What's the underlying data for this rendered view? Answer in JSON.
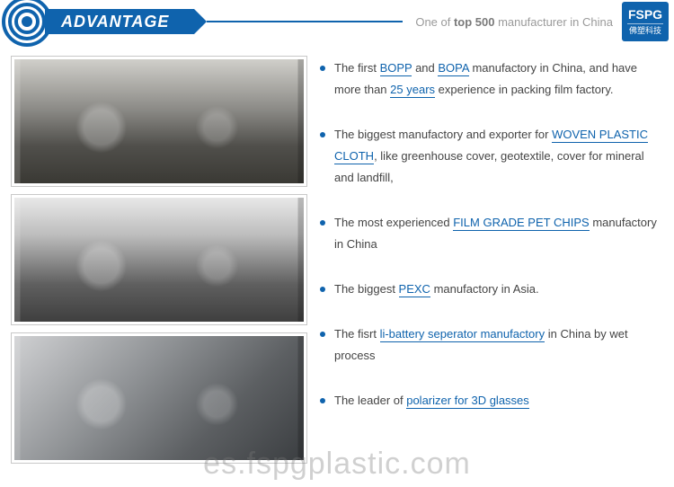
{
  "header": {
    "title": "ADVANTAGE",
    "tagline_prefix": "One of ",
    "tagline_bold": "top 500",
    "tagline_suffix": " manufacturer in China",
    "badge_en": "FSPG",
    "badge_cn": "佛塑科技",
    "accent_color": "#0f63ad"
  },
  "bullets": [
    {
      "segments": [
        {
          "t": "The first ",
          "link": false
        },
        {
          "t": "BOPP",
          "link": true
        },
        {
          "t": " and ",
          "link": false
        },
        {
          "t": "BOPA",
          "link": true
        },
        {
          "t": " manufactory in China, and have more than ",
          "link": false
        },
        {
          "t": "25 years",
          "link": true
        },
        {
          "t": " experience in packing film factory.",
          "link": false
        }
      ]
    },
    {
      "segments": [
        {
          "t": "The biggest manufactory and exporter for ",
          "link": false
        },
        {
          "t": "WOVEN PLASTIC CLOTH",
          "link": true
        },
        {
          "t": ", like greenhouse cover, geotextile, cover for mineral and landfill,",
          "link": false
        }
      ]
    },
    {
      "segments": [
        {
          "t": "The most experienced ",
          "link": false
        },
        {
          "t": "FILM GRADE PET CHIPS",
          "link": true
        },
        {
          "t": " manufactory in China",
          "link": false
        }
      ]
    },
    {
      "segments": [
        {
          "t": "The biggest ",
          "link": false
        },
        {
          "t": "PEXC",
          "link": true
        },
        {
          "t": " manufactory in Asia.",
          "link": false
        }
      ]
    },
    {
      "segments": [
        {
          "t": "The fisrt ",
          "link": false
        },
        {
          "t": "li-battery seperator manufactory",
          "link": true
        },
        {
          "t": " in China by wet process",
          "link": false
        }
      ]
    },
    {
      "segments": [
        {
          "t": "The leader of ",
          "link": false
        },
        {
          "t": "polarizer for 3D glasses",
          "link": true
        }
      ]
    }
  ],
  "images": [
    {
      "alt": "factory-machine-1"
    },
    {
      "alt": "factory-machine-2"
    },
    {
      "alt": "factory-lab-3"
    }
  ],
  "watermark": "es.fspgplastic.com"
}
